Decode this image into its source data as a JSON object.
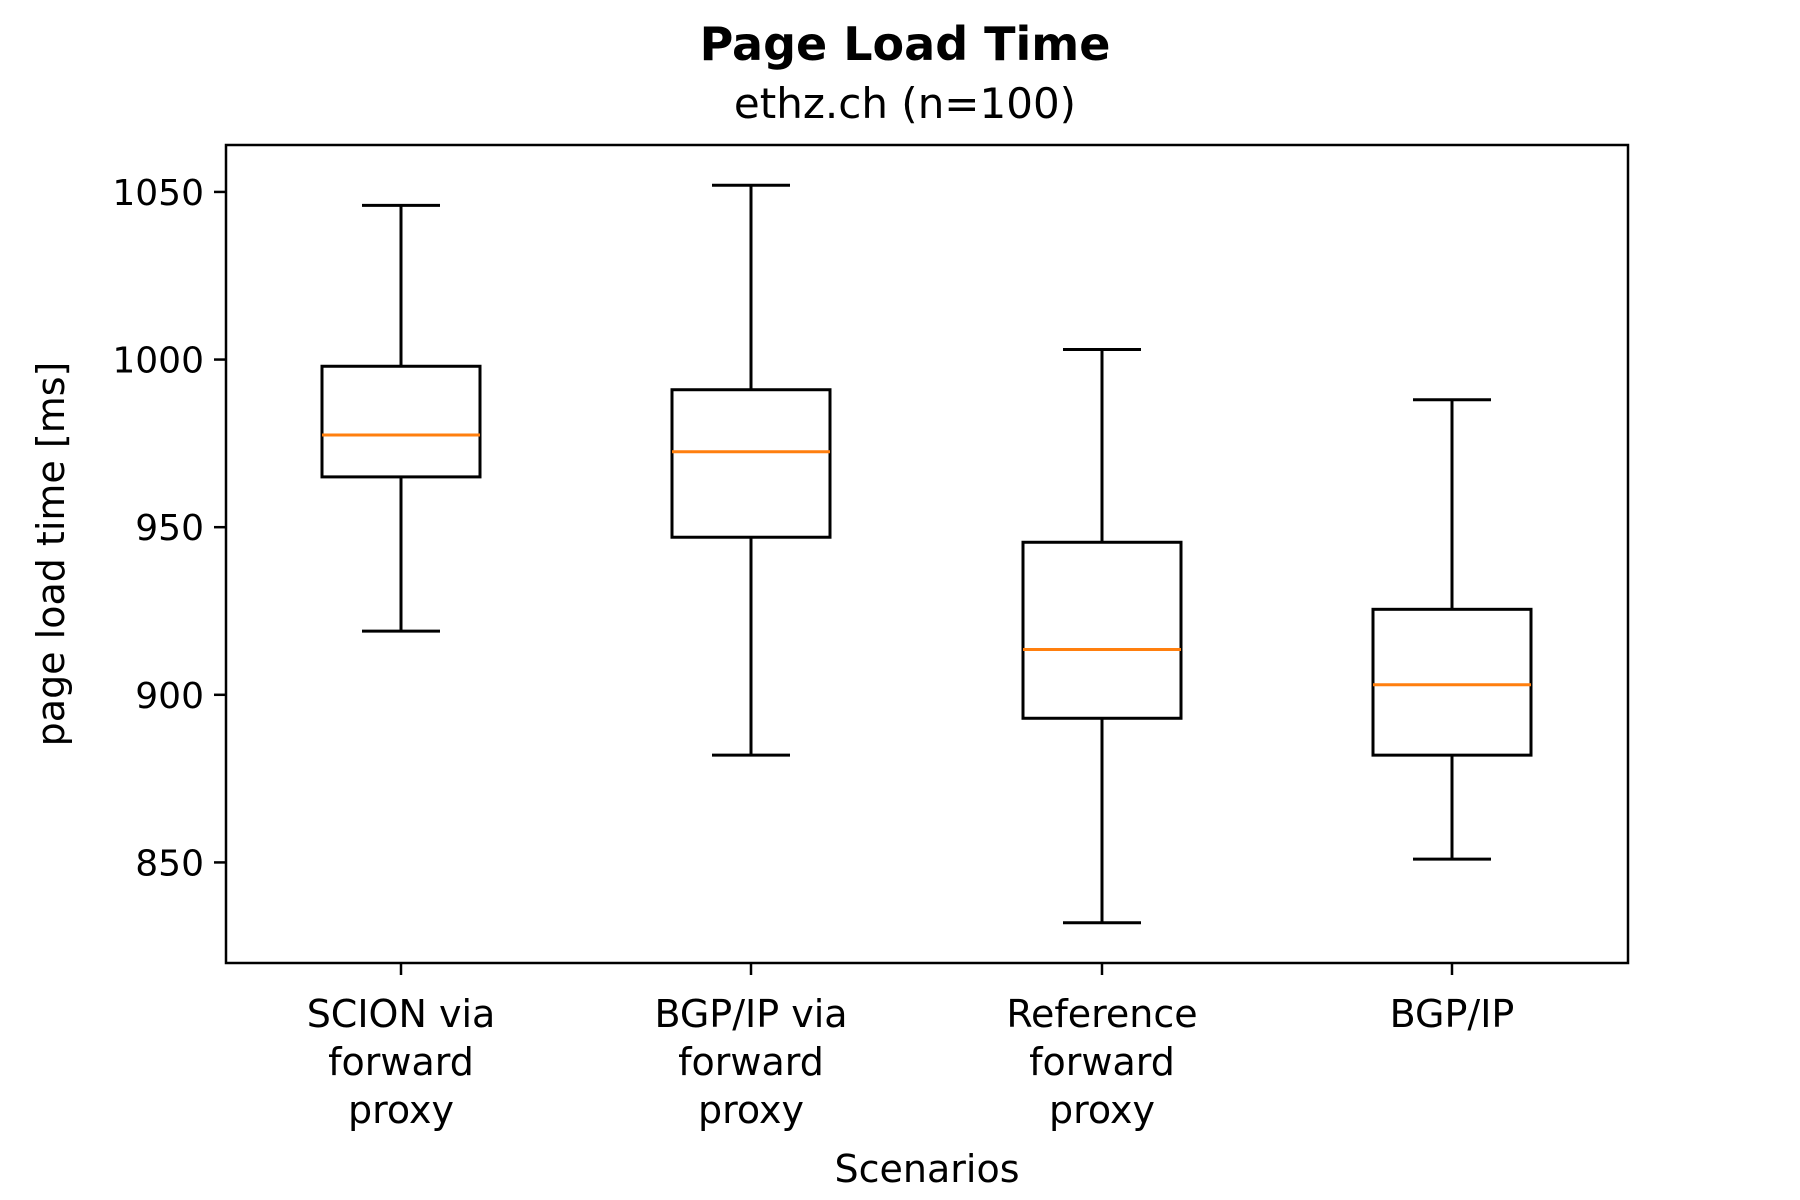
{
  "chart_data": {
    "type": "box",
    "title": "Page Load Time",
    "subtitle": "ethz.ch (n=100)",
    "xlabel": "Scenarios",
    "ylabel": "page load time [ms]",
    "ylim": [
      820,
      1064
    ],
    "yticks": [
      850,
      900,
      950,
      1000,
      1050
    ],
    "categories": [
      [
        "SCION via",
        "forward",
        "proxy"
      ],
      [
        "BGP/IP via",
        "forward",
        "proxy"
      ],
      [
        "Reference",
        "forward",
        "proxy"
      ],
      [
        "BGP/IP"
      ]
    ],
    "boxes": [
      {
        "whisker_low": 919,
        "q1": 965,
        "median": 977.5,
        "q3": 998,
        "whisker_high": 1046
      },
      {
        "whisker_low": 882,
        "q1": 947,
        "median": 972.5,
        "q3": 991,
        "whisker_high": 1052
      },
      {
        "whisker_low": 832,
        "q1": 893,
        "median": 913.5,
        "q3": 945.5,
        "whisker_high": 1003
      },
      {
        "whisker_low": 851,
        "q1": 882,
        "median": 903,
        "q3": 925.5,
        "whisker_high": 988
      }
    ],
    "colors": {
      "box": "#000000",
      "median": "#ff7f0e"
    },
    "grid": false,
    "legend": "none"
  }
}
